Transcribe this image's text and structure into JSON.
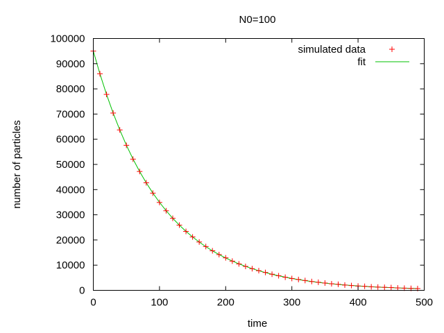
{
  "chart_data": {
    "type": "scatter",
    "title": "N0=100",
    "xlabel": "time",
    "ylabel": "number of particles",
    "xlim": [
      0,
      500
    ],
    "ylim": [
      0,
      100000
    ],
    "xticks": [
      0,
      100,
      200,
      300,
      400,
      500
    ],
    "yticks": [
      0,
      10000,
      20000,
      30000,
      40000,
      50000,
      60000,
      70000,
      80000,
      90000,
      100000
    ],
    "grid": false,
    "legend": "top-right",
    "x": [
      0,
      10,
      20,
      30,
      40,
      50,
      60,
      70,
      80,
      90,
      100,
      110,
      120,
      130,
      140,
      150,
      160,
      170,
      180,
      190,
      200,
      210,
      220,
      230,
      240,
      250,
      260,
      270,
      280,
      290,
      300,
      310,
      320,
      330,
      340,
      350,
      360,
      370,
      380,
      390,
      400,
      410,
      420,
      430,
      440,
      450,
      460,
      470,
      480,
      490
    ],
    "series": [
      {
        "name": "simulated data",
        "style": "points",
        "color": "#ff0000",
        "values": [
          95000,
          86000,
          77800,
          70400,
          63700,
          57600,
          52100,
          47200,
          42700,
          38600,
          34900,
          31600,
          28600,
          25900,
          23400,
          21200,
          19200,
          17400,
          15700,
          14200,
          12900,
          11600,
          10500,
          9500,
          8600,
          7800,
          7100,
          6400,
          5800,
          5200,
          4700,
          4300,
          3900,
          3500,
          3200,
          2900,
          2600,
          2400,
          2100,
          1900,
          1700,
          1600,
          1400,
          1300,
          1200,
          1100,
          950,
          860,
          780,
          710
        ]
      },
      {
        "name": "fit",
        "style": "line",
        "color": "#00c000",
        "values": [
          95000,
          85960,
          77780,
          70380,
          63680,
          57620,
          52140,
          47170,
          42690,
          38620,
          34950,
          31620,
          28610,
          25890,
          23430,
          21200,
          19180,
          17350,
          15700,
          14210,
          12860,
          11630,
          10530,
          9520,
          8620,
          7800,
          7050,
          6380,
          5780,
          5230,
          4730,
          4280,
          3870,
          3500,
          3170,
          2870,
          2600,
          2350,
          2120,
          1920,
          1740,
          1570,
          1420,
          1290,
          1160,
          1060,
          950,
          860,
          780,
          710
        ]
      }
    ]
  }
}
